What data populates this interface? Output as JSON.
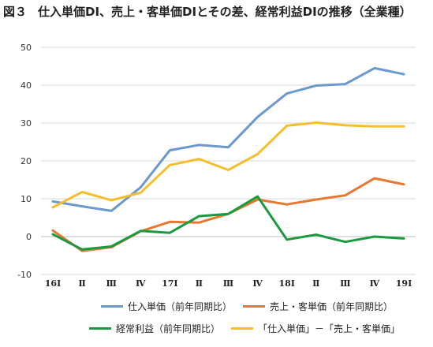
{
  "title": {
    "fig": "図３",
    "text": "仕入単価DI、売上・客単価DIとその差、経常利益DIの推移（全業種）"
  },
  "chart_data": {
    "type": "line",
    "categories": [
      "16Ⅰ",
      "Ⅱ",
      "Ⅲ",
      "Ⅳ",
      "17Ⅰ",
      "Ⅱ",
      "Ⅲ",
      "Ⅳ",
      "18Ⅰ",
      "Ⅱ",
      "Ⅲ",
      "Ⅳ",
      "19Ⅰ"
    ],
    "ylim": [
      -10,
      50
    ],
    "yticks": [
      -10,
      0,
      10,
      20,
      30,
      40,
      50
    ],
    "grid": true,
    "legend": "bottom",
    "series": [
      {
        "name": "仕入単価（前年同期比）",
        "color": "#6a98cf",
        "values": [
          9.3,
          8.0,
          6.8,
          13.0,
          22.8,
          24.2,
          23.6,
          31.6,
          37.8,
          39.9,
          40.3,
          44.5,
          42.9
        ]
      },
      {
        "name": "売上・客単価（前年同期比）",
        "color": "#e8782f",
        "values": [
          1.6,
          -3.8,
          -2.8,
          1.4,
          3.9,
          3.7,
          6.0,
          9.8,
          8.5,
          9.8,
          10.9,
          15.4,
          13.8
        ]
      },
      {
        "name": "経常利益（前年同期比）",
        "color": "#1a9a3f",
        "values": [
          0.6,
          -3.4,
          -2.6,
          1.5,
          1.0,
          5.4,
          6.0,
          10.6,
          -0.8,
          0.5,
          -1.4,
          0.0,
          -0.5
        ]
      },
      {
        "name": "「仕入単価」－「売上・客単価」",
        "color": "#f5be2a",
        "values": [
          7.7,
          11.8,
          9.6,
          11.6,
          18.9,
          20.5,
          17.6,
          21.8,
          29.3,
          30.1,
          29.4,
          29.1,
          29.1
        ]
      }
    ]
  }
}
